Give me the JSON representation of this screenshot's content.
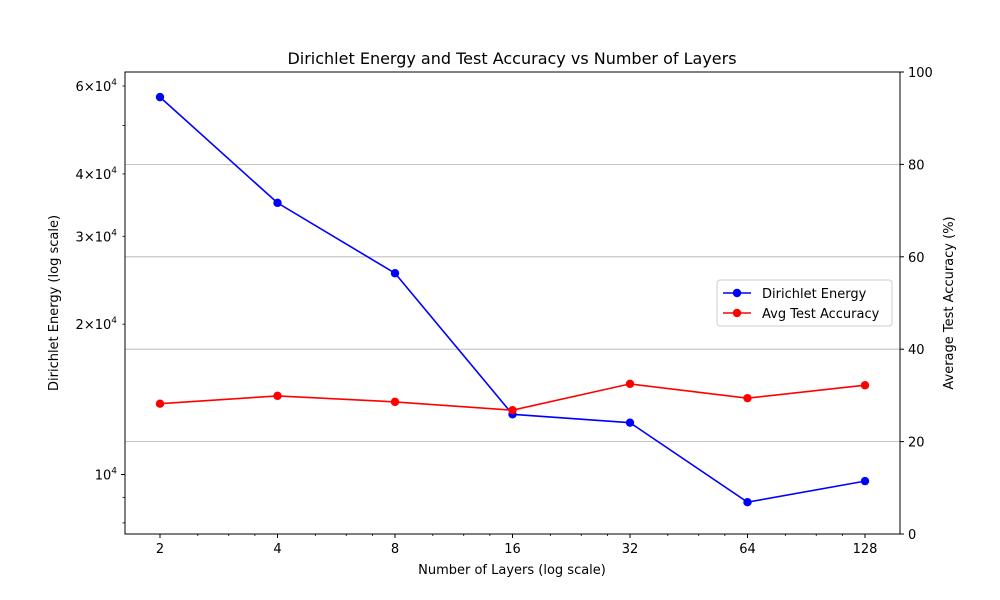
{
  "chart_data": {
    "type": "line",
    "title": "Dirichlet Energy and Test Accuracy vs Number of Layers",
    "xlabel": "Number of Layers (log scale)",
    "xscale": "log2",
    "x": [
      2,
      4,
      8,
      16,
      32,
      64,
      128
    ],
    "x_tick_labels": [
      "2",
      "4",
      "8",
      "16",
      "32",
      "64",
      "128"
    ],
    "left_axis": {
      "label": "Dirichlet Energy (log scale)",
      "scale": "log",
      "ylim": [
        7600,
        64000
      ],
      "major_ticks": [
        {
          "value": 10000,
          "mantissa": "",
          "exponent": "4"
        }
      ],
      "minor_labeled_ticks": [
        {
          "value": 20000,
          "mantissa": "2",
          "exponent": "4"
        },
        {
          "value": 30000,
          "mantissa": "3",
          "exponent": "4"
        },
        {
          "value": 40000,
          "mantissa": "4",
          "exponent": "4"
        },
        {
          "value": 60000,
          "mantissa": "6",
          "exponent": "4"
        }
      ],
      "minor_unlabeled_ticks": [
        8000,
        9000,
        50000
      ]
    },
    "right_axis": {
      "label": "Average Test Accuracy (%)",
      "scale": "linear",
      "ylim": [
        0,
        100
      ],
      "ticks": [
        0,
        20,
        40,
        60,
        80,
        100
      ],
      "grid": true
    },
    "series": [
      {
        "name": "Dirichlet Energy",
        "axis": "left",
        "color": "#0000ff",
        "values": [
          57000,
          35000,
          25300,
          13200,
          12700,
          8800,
          9700
        ]
      },
      {
        "name": "Avg Test Accuracy",
        "axis": "right",
        "color": "#ff0000",
        "values": [
          28.2,
          29.9,
          28.6,
          26.8,
          32.5,
          29.4,
          32.2
        ]
      }
    ],
    "legend": {
      "position": "center-right"
    }
  }
}
